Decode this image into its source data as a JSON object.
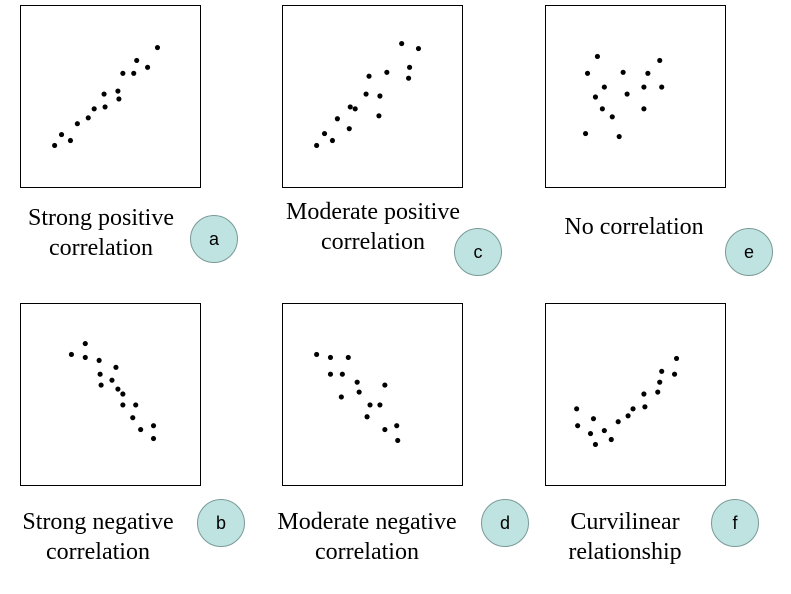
{
  "panels": [
    {
      "id": "a",
      "caption": [
        "Strong positive",
        "correlation"
      ],
      "badge": "a",
      "points": [
        [
          34,
          141
        ],
        [
          41,
          130
        ],
        [
          50,
          136
        ],
        [
          57,
          119
        ],
        [
          68,
          113
        ],
        [
          74,
          104
        ],
        [
          84,
          89
        ],
        [
          85,
          102
        ],
        [
          98,
          86
        ],
        [
          99,
          94
        ],
        [
          103,
          68
        ],
        [
          114,
          68
        ],
        [
          117,
          55
        ],
        [
          128,
          62
        ],
        [
          138,
          42
        ]
      ]
    },
    {
      "id": "c",
      "caption": [
        "Moderate positive",
        "correlation"
      ],
      "badge": "c",
      "points": [
        [
          34,
          141
        ],
        [
          42,
          129
        ],
        [
          50,
          136
        ],
        [
          55,
          114
        ],
        [
          67,
          124
        ],
        [
          68,
          102
        ],
        [
          73,
          104
        ],
        [
          84,
          89
        ],
        [
          87,
          71
        ],
        [
          97,
          111
        ],
        [
          98,
          91
        ],
        [
          105,
          67
        ],
        [
          120,
          38
        ],
        [
          128,
          62
        ],
        [
          127,
          73
        ],
        [
          137,
          43
        ]
      ]
    },
    {
      "id": "e",
      "caption": [
        "No correlation"
      ],
      "badge": "e",
      "points": [
        [
          52,
          51
        ],
        [
          42,
          68
        ],
        [
          40,
          129
        ],
        [
          50,
          92
        ],
        [
          59,
          82
        ],
        [
          57,
          104
        ],
        [
          67,
          112
        ],
        [
          74,
          132
        ],
        [
          78,
          67
        ],
        [
          82,
          89
        ],
        [
          99,
          104
        ],
        [
          103,
          68
        ],
        [
          99,
          82
        ],
        [
          115,
          55
        ],
        [
          117,
          82
        ]
      ]
    },
    {
      "id": "b",
      "caption": [
        "Strong negative",
        "correlation"
      ],
      "badge": "b",
      "points": [
        [
          51,
          51
        ],
        [
          65,
          40
        ],
        [
          65,
          54
        ],
        [
          79,
          57
        ],
        [
          80,
          71
        ],
        [
          81,
          82
        ],
        [
          92,
          77
        ],
        [
          96,
          64
        ],
        [
          98,
          86
        ],
        [
          103,
          91
        ],
        [
          103,
          102
        ],
        [
          113,
          115
        ],
        [
          116,
          102
        ],
        [
          121,
          127
        ],
        [
          134,
          136
        ],
        [
          134,
          123
        ]
      ]
    },
    {
      "id": "d",
      "caption": [
        "Moderate negative",
        "correlation"
      ],
      "badge": "d",
      "points": [
        [
          34,
          51
        ],
        [
          48,
          54
        ],
        [
          48,
          71
        ],
        [
          60,
          71
        ],
        [
          66,
          54
        ],
        [
          75,
          79
        ],
        [
          77,
          89
        ],
        [
          59,
          94
        ],
        [
          88,
          102
        ],
        [
          85,
          114
        ],
        [
          98,
          102
        ],
        [
          103,
          82
        ],
        [
          103,
          127
        ],
        [
          115,
          123
        ],
        [
          116,
          138
        ]
      ]
    },
    {
      "id": "f",
      "caption": [
        "Curvilinear",
        "relationship"
      ],
      "badge": "f",
      "points": [
        [
          31,
          106
        ],
        [
          32,
          123
        ],
        [
          45,
          131
        ],
        [
          48,
          116
        ],
        [
          50,
          142
        ],
        [
          59,
          128
        ],
        [
          66,
          137
        ],
        [
          73,
          119
        ],
        [
          83,
          113
        ],
        [
          88,
          106
        ],
        [
          100,
          104
        ],
        [
          99,
          91
        ],
        [
          113,
          89
        ],
        [
          115,
          79
        ],
        [
          117,
          68
        ],
        [
          130,
          71
        ],
        [
          132,
          55
        ]
      ]
    }
  ]
}
